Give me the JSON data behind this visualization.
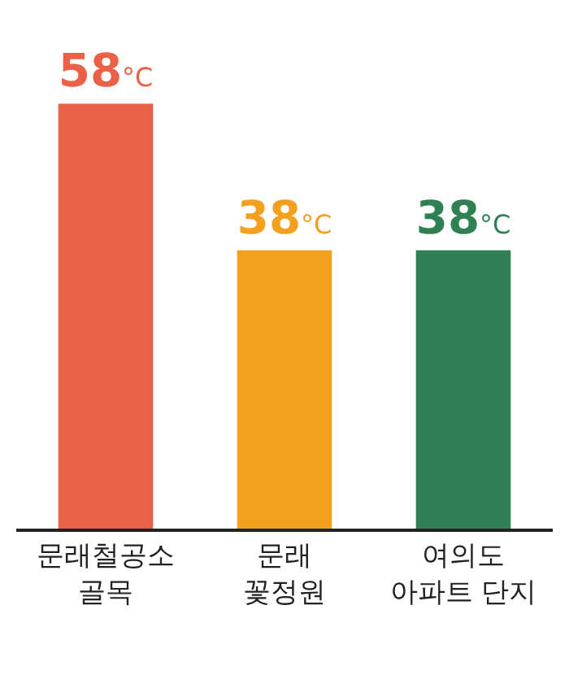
{
  "chart_data": {
    "type": "bar",
    "categories": [
      "문래철공소\n골목",
      "문래\n꽃정원",
      "여의도\n아파트 단지"
    ],
    "values": [
      58,
      38,
      38
    ],
    "colors": [
      "#ea6148",
      "#f3a01f",
      "#2f8154"
    ],
    "value_labels": [
      "58°C",
      "38°C",
      "38°C"
    ],
    "tick_labels": "x"
  }
}
